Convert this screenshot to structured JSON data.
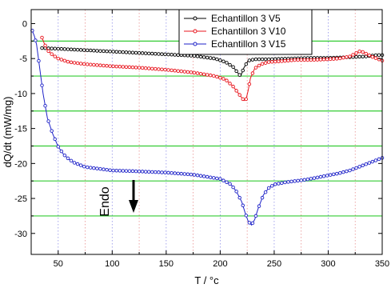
{
  "chart_data": {
    "type": "line",
    "title": "",
    "xlabel": "T / °c",
    "ylabel": "dQ/dt (mW/mg)",
    "xlim": [
      25,
      350
    ],
    "ylim": [
      -33,
      2
    ],
    "xticks": [
      50,
      100,
      150,
      200,
      250,
      300,
      350
    ],
    "yticks": [
      0,
      -5,
      -10,
      -15,
      -20,
      -25,
      -30
    ],
    "x_gridlines": [
      50,
      75,
      100,
      125,
      150,
      175,
      200,
      225,
      250,
      275,
      300,
      325
    ],
    "y_gridlines": [
      -2.5,
      -7.5,
      -12.5,
      -17.5,
      -22.5,
      -27.5
    ],
    "legend_position": "top-right",
    "annotation": {
      "text": "Endo",
      "arrow": "down"
    },
    "colors": {
      "v5": "#000000",
      "v10": "#e8141c",
      "v15": "#1e22c8",
      "gridline_h": "#33cc33",
      "gridline_v_blue": "#9090e8",
      "gridline_v_red": "#e89090"
    },
    "series": [
      {
        "name": "Echantillon 3 V5",
        "color": "#000000",
        "x": [
          35,
          50,
          75,
          100,
          125,
          150,
          175,
          195,
          205,
          212,
          216,
          219,
          222,
          226,
          232,
          245,
          265,
          285,
          300,
          320,
          335,
          345,
          350
        ],
        "y": [
          -3.5,
          -3.6,
          -3.8,
          -4.0,
          -4.2,
          -4.4,
          -4.6,
          -5.0,
          -5.5,
          -6.2,
          -7.0,
          -7.5,
          -6.3,
          -5.3,
          -5.1,
          -5.1,
          -5.0,
          -4.9,
          -4.9,
          -4.8,
          -4.7,
          -4.5,
          -4.5
        ]
      },
      {
        "name": "Echantillon 3 V10",
        "color": "#e8141c",
        "x": [
          35,
          37,
          40,
          45,
          50,
          60,
          75,
          100,
          125,
          150,
          175,
          195,
          205,
          212,
          218,
          222,
          224,
          226,
          228,
          232,
          238,
          245,
          255,
          270,
          285,
          300,
          310,
          320,
          330,
          340,
          350
        ],
        "y": [
          -2.0,
          -2.8,
          -3.8,
          -4.5,
          -5.0,
          -5.5,
          -5.8,
          -6.1,
          -6.3,
          -6.6,
          -7.0,
          -7.5,
          -8.0,
          -9.0,
          -10.2,
          -11.0,
          -10.8,
          -9.5,
          -7.8,
          -6.4,
          -5.8,
          -5.5,
          -5.4,
          -5.2,
          -5.2,
          -5.1,
          -5.0,
          -4.7,
          -3.9,
          -4.7,
          -5.3
        ]
      },
      {
        "name": "Echantillon 3 V15",
        "color": "#1e22c8",
        "x": [
          26,
          28,
          30,
          33,
          36,
          40,
          45,
          50,
          55,
          60,
          65,
          70,
          75,
          80,
          90,
          100,
          120,
          150,
          175,
          200,
          210,
          215,
          220,
          223,
          226,
          229,
          232,
          235,
          240,
          245,
          250,
          260,
          270,
          280,
          290,
          300,
          310,
          320,
          330,
          340,
          350
        ],
        "y": [
          -1.0,
          -1.8,
          -3.0,
          -6.5,
          -10.0,
          -13.5,
          -15.8,
          -17.6,
          -18.7,
          -19.4,
          -19.9,
          -20.2,
          -20.5,
          -20.6,
          -20.8,
          -21.0,
          -21.1,
          -21.3,
          -21.6,
          -22.2,
          -23.0,
          -24.0,
          -25.5,
          -27.0,
          -28.3,
          -28.8,
          -28.0,
          -26.5,
          -24.5,
          -23.5,
          -23.0,
          -22.7,
          -22.5,
          -22.3,
          -22.0,
          -21.7,
          -21.4,
          -21.0,
          -20.4,
          -19.8,
          -19.2
        ]
      }
    ]
  }
}
